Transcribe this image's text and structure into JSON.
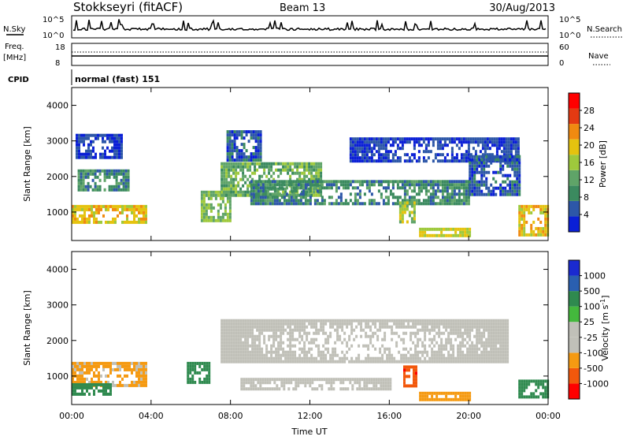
{
  "header": {
    "title": "Stokkseyri (fitACF)",
    "beam": "Beam 13",
    "date": "30/Aug/2013"
  },
  "sky_panel": {
    "left_label": "N.Sky",
    "right_label": "N.Search",
    "left_ticks": [
      "10^5",
      "10^0"
    ],
    "right_ticks": [
      "10^5",
      "10^0"
    ]
  },
  "freq_panel": {
    "left_label_line1": "Freq.",
    "left_label_line2": "[MHz]",
    "right_label": "Nave",
    "left_ticks": [
      "18",
      "8"
    ],
    "right_ticks": [
      "60",
      "0"
    ]
  },
  "cpid": {
    "label": "CPID",
    "value": "normal (fast) 151"
  },
  "colors": {
    "power": [
      "#0a1fd6",
      "#2d57a8",
      "#3b8a5f",
      "#5fa468",
      "#9ec93c",
      "#e5c30f",
      "#f08a10",
      "#e43a12",
      "#ff0000"
    ],
    "velocity": [
      "#ff0000",
      "#f2580c",
      "#f59a12",
      "#c0c0b8",
      "#c0c0b8",
      "#44b83d",
      "#2f8a4f",
      "#2a5fb0",
      "#1a2ad0"
    ]
  },
  "chart_data": [
    {
      "type": "heatmap",
      "name": "power",
      "ylabel": "Slant Range [km]",
      "ylim": [
        200,
        4500
      ],
      "yticks": [
        "1000",
        "2000",
        "3000",
        "4000"
      ],
      "xlim": [
        0,
        24
      ],
      "colorbar_label": "Power [dB]",
      "colorbar_ticks": [
        "4",
        "8",
        "12",
        "16",
        "20",
        "24",
        "28"
      ],
      "colorbar_range": [
        0,
        32
      ],
      "features": [
        {
          "t0": 0.0,
          "t1": 3.8,
          "r0": 700,
          "r1": 1200,
          "level": 22
        },
        {
          "t0": 0.3,
          "t1": 2.8,
          "r0": 1600,
          "r1": 2200,
          "level": 10
        },
        {
          "t0": 0.2,
          "t1": 2.5,
          "r0": 2500,
          "r1": 3200,
          "level": 4
        },
        {
          "t0": 6.5,
          "t1": 8.0,
          "r0": 800,
          "r1": 1600,
          "level": 16
        },
        {
          "t0": 7.5,
          "t1": 12.5,
          "r0": 1500,
          "r1": 2400,
          "level": 14
        },
        {
          "t0": 7.8,
          "t1": 9.5,
          "r0": 2500,
          "r1": 3300,
          "level": 6
        },
        {
          "t0": 9.0,
          "t1": 20.0,
          "r0": 1200,
          "r1": 1900,
          "level": 10
        },
        {
          "t0": 14.0,
          "t1": 22.5,
          "r0": 2400,
          "r1": 3100,
          "level": 4
        },
        {
          "t0": 17.5,
          "t1": 20.0,
          "r0": 380,
          "r1": 560,
          "level": 20
        },
        {
          "t0": 16.5,
          "t1": 17.3,
          "r0": 700,
          "r1": 1300,
          "level": 18
        },
        {
          "t0": 20.0,
          "t1": 22.5,
          "r0": 1500,
          "r1": 2600,
          "level": 6
        },
        {
          "t0": 22.5,
          "t1": 24.0,
          "r0": 400,
          "r1": 1200,
          "level": 22
        }
      ]
    },
    {
      "type": "heatmap",
      "name": "velocity",
      "ylabel": "Slant Range [km]",
      "xlabel": "Time UT",
      "ylim": [
        200,
        4500
      ],
      "yticks": [
        "1000",
        "2000",
        "3000",
        "4000"
      ],
      "xlim": [
        0,
        24
      ],
      "xticks": [
        "00:00",
        "04:00",
        "08:00",
        "12:00",
        "16:00",
        "20:00",
        "00:00"
      ],
      "colorbar_label": "Velocity [m s^-1]",
      "colorbar_ticks": [
        "-1000",
        "-500",
        "-100",
        "-25",
        "25",
        "100",
        "500",
        "1000"
      ],
      "features": [
        {
          "t0": 0.0,
          "t1": 3.8,
          "r0": 700,
          "r1": 1400,
          "level": -120
        },
        {
          "t0": 0.0,
          "t1": 2.0,
          "r0": 500,
          "r1": 800,
          "level": 150
        },
        {
          "t0": 5.8,
          "t1": 6.9,
          "r0": 800,
          "r1": 1400,
          "level": 150
        },
        {
          "t0": 7.5,
          "t1": 22.0,
          "r0": 1400,
          "r1": 2600,
          "level": 0
        },
        {
          "t0": 8.5,
          "t1": 16.0,
          "r0": 600,
          "r1": 950,
          "level": 0
        },
        {
          "t0": 16.7,
          "t1": 17.3,
          "r0": 700,
          "r1": 1300,
          "level": -800
        },
        {
          "t0": 17.5,
          "t1": 20.0,
          "r0": 380,
          "r1": 560,
          "level": -300
        },
        {
          "t0": 22.5,
          "t1": 24.0,
          "r0": 400,
          "r1": 900,
          "level": 150
        }
      ]
    }
  ]
}
